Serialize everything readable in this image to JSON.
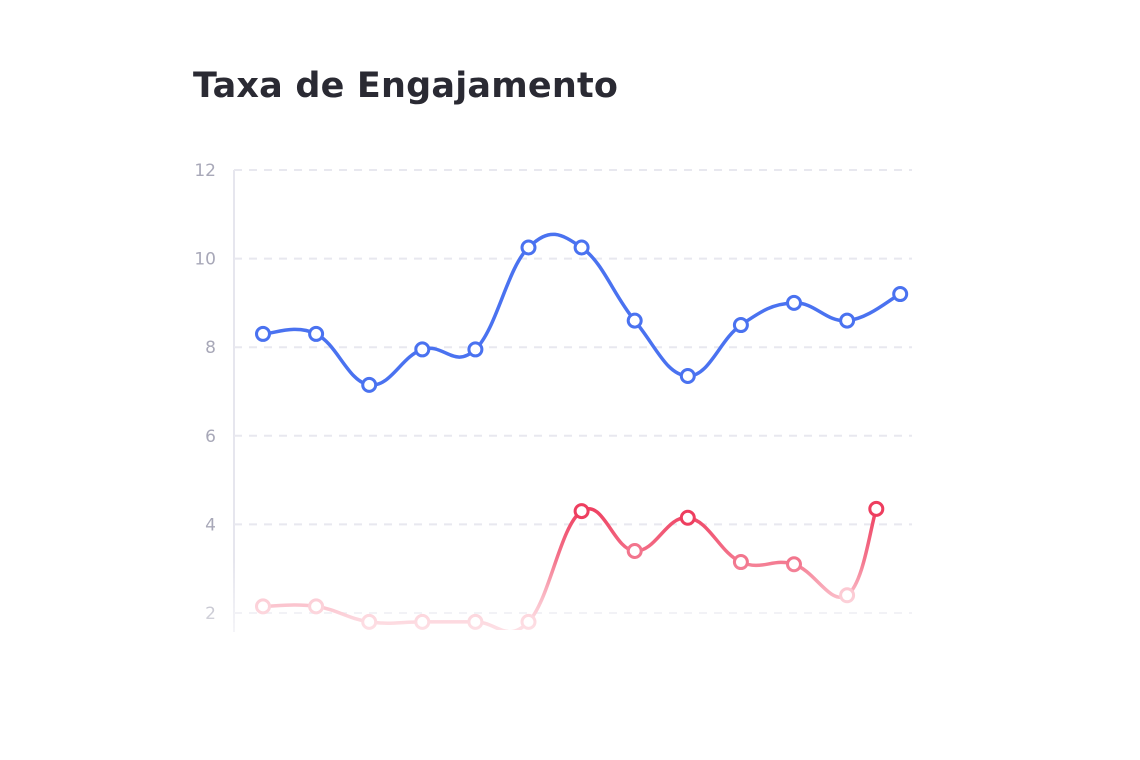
{
  "chart_data": {
    "type": "line",
    "title": "Taxa de Engajamento",
    "xlabel": "",
    "ylabel": "",
    "ylim": [
      2,
      12
    ],
    "yticks": [
      "12",
      "10",
      "8",
      "6",
      "4",
      "2"
    ],
    "grid": true,
    "smooth": true,
    "series": [
      {
        "color": "#4a72f0",
        "x": [
          0,
          1,
          2,
          3,
          4,
          5,
          6,
          7,
          8,
          9,
          10,
          11,
          12
        ],
        "values": [
          8.3,
          8.3,
          7.15,
          7.95,
          7.95,
          10.25,
          10.25,
          8.6,
          7.35,
          8.5,
          9.0,
          8.6,
          9.2
        ]
      },
      {
        "color": "#ee3e5f",
        "color_faded": "#fbb8c4",
        "x": [
          0,
          1,
          2,
          3,
          4,
          5,
          6,
          7,
          8,
          9,
          10,
          11,
          11.55
        ],
        "values": [
          2.15,
          2.15,
          1.8,
          1.8,
          1.8,
          1.8,
          4.3,
          3.4,
          4.15,
          3.15,
          3.1,
          2.4,
          4.35
        ]
      }
    ]
  }
}
